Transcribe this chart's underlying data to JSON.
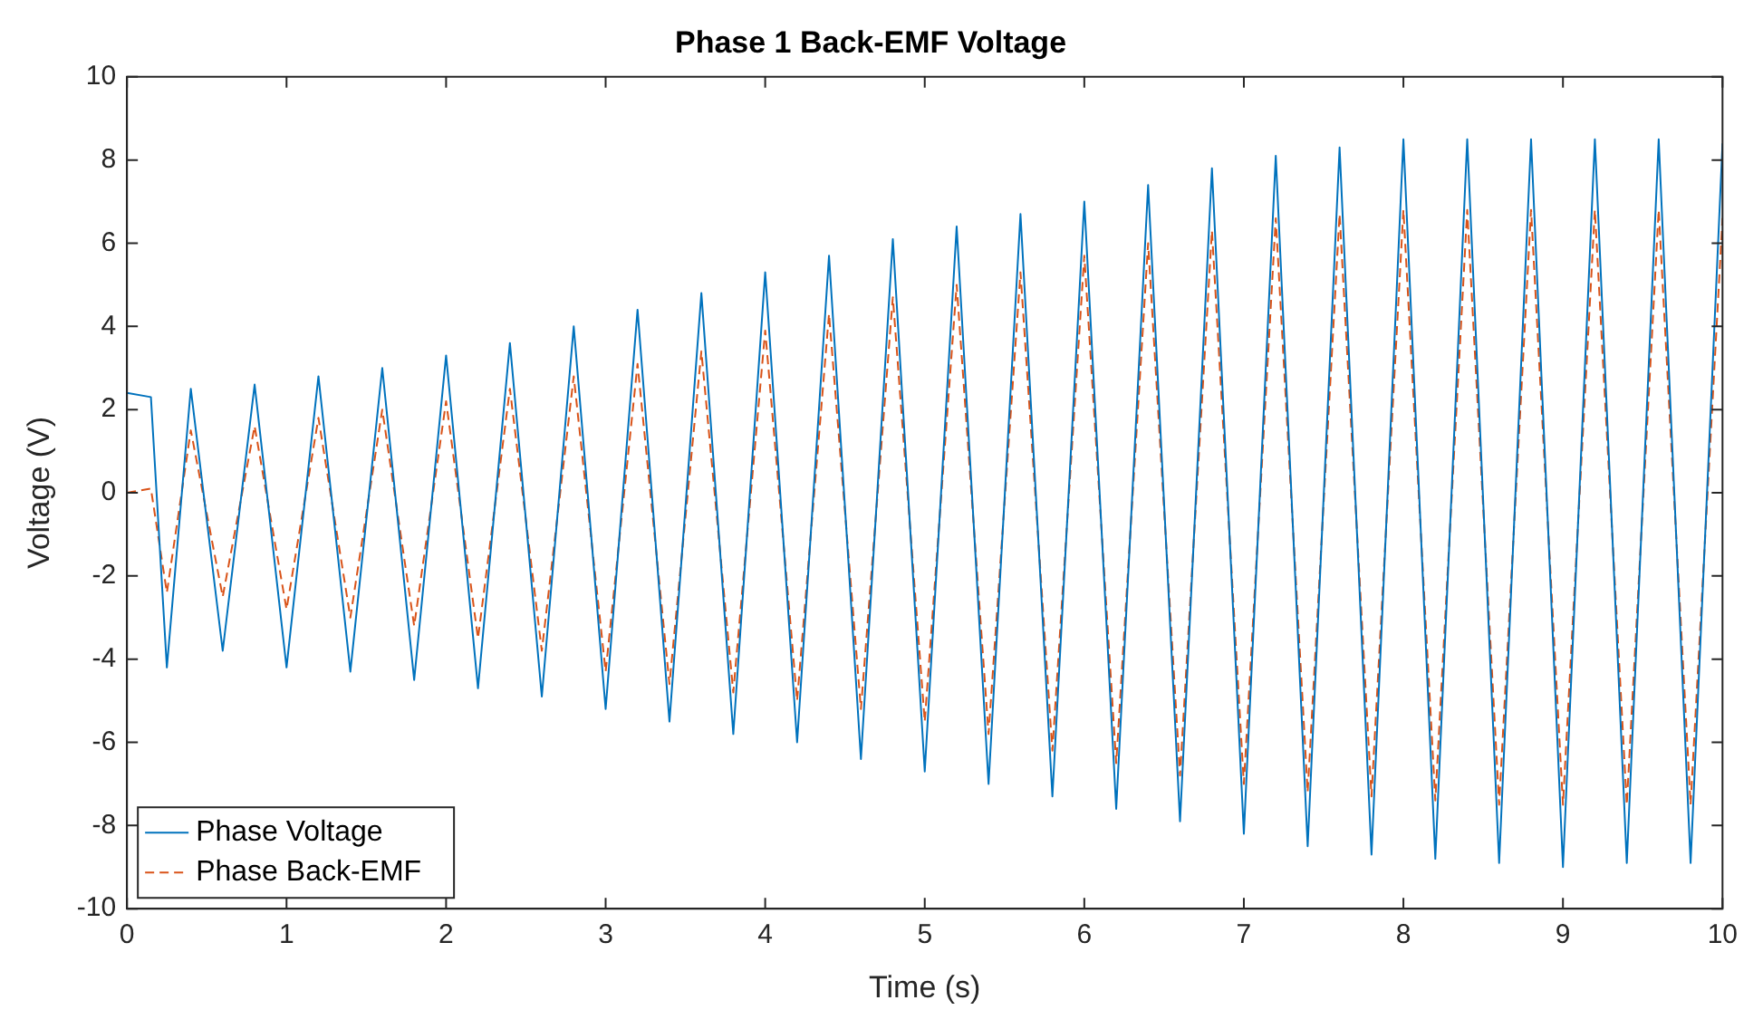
{
  "chart_data": {
    "type": "line",
    "title": "Phase 1 Back-EMF Voltage",
    "xlabel": "Time (s)",
    "ylabel": "Voltage (V)",
    "x": [
      0,
      0.15,
      0.25,
      0.4,
      0.6,
      0.8,
      1.0,
      1.2,
      1.4,
      1.6,
      1.8,
      2.0,
      2.2,
      2.4,
      2.6,
      2.8,
      3.0,
      3.2,
      3.4,
      3.6,
      3.8,
      4.0,
      4.2,
      4.4,
      4.6,
      4.8,
      5.0,
      5.2,
      5.4,
      5.6,
      5.8,
      6.0,
      6.2,
      6.4,
      6.6,
      6.8,
      7.0,
      7.2,
      7.4,
      7.6,
      7.8,
      8.0,
      8.2,
      8.4,
      8.6,
      8.8,
      9.0,
      9.2,
      9.4,
      9.6,
      9.8,
      10.0
    ],
    "series": [
      {
        "name": "Phase Voltage",
        "color": "#0072bd",
        "line_style": "solid",
        "values": [
          2.4,
          2.3,
          -4.2,
          2.5,
          -3.8,
          2.6,
          -4.2,
          2.8,
          -4.3,
          3.0,
          -4.5,
          3.3,
          -4.7,
          3.6,
          -4.9,
          4.0,
          -5.2,
          4.4,
          -5.5,
          4.8,
          -5.8,
          5.3,
          -6.0,
          5.7,
          -6.4,
          6.1,
          -6.7,
          6.4,
          -7.0,
          6.7,
          -7.3,
          7.0,
          -7.6,
          7.4,
          -7.9,
          7.8,
          -8.2,
          8.1,
          -8.5,
          8.3,
          -8.7,
          8.5,
          -8.8,
          8.5,
          -8.9,
          8.5,
          -9.0,
          8.5,
          -8.9,
          8.5,
          -8.9,
          8.4
        ]
      },
      {
        "name": "Phase Back-EMF",
        "color": "#d95319",
        "line_style": "dashed",
        "values": [
          0,
          0.1,
          -2.4,
          1.5,
          -2.5,
          1.6,
          -2.8,
          1.8,
          -3.0,
          2.0,
          -3.2,
          2.2,
          -3.5,
          2.5,
          -3.8,
          2.8,
          -4.3,
          3.1,
          -4.6,
          3.4,
          -4.8,
          3.9,
          -5.0,
          4.3,
          -5.2,
          4.7,
          -5.5,
          5.0,
          -5.8,
          5.3,
          -6.2,
          5.7,
          -6.5,
          6.0,
          -6.8,
          6.3,
          -7.0,
          6.6,
          -7.2,
          6.7,
          -7.3,
          6.8,
          -7.4,
          6.8,
          -7.5,
          6.8,
          -7.5,
          6.8,
          -7.5,
          6.8,
          -7.5,
          6.6
        ]
      }
    ],
    "xlim": [
      0,
      10
    ],
    "xticks": [
      0,
      1,
      2,
      3,
      4,
      5,
      6,
      7,
      8,
      9,
      10
    ],
    "ylim": [
      -10,
      10
    ],
    "yticks": [
      -10,
      -8,
      -6,
      -4,
      -2,
      0,
      2,
      4,
      6,
      8,
      10
    ],
    "grid": false,
    "legend": "bottom left",
    "marker": "none"
  }
}
